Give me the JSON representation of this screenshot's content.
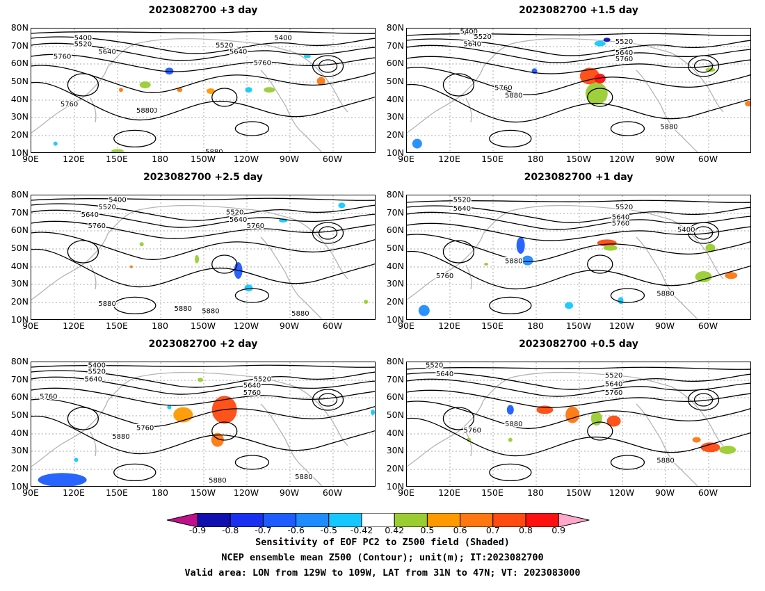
{
  "chart_data": [
    {
      "type": "heatmap",
      "title": "2023082700 +3 day",
      "x_ticks": [
        "90E",
        "120E",
        "150E",
        "180",
        "150W",
        "120W",
        "90W",
        "60W"
      ],
      "y_ticks": [
        "10N",
        "20N",
        "30N",
        "40N",
        "50N",
        "60N",
        "70N",
        "80N"
      ],
      "contour_labels": [
        "5400",
        "5520",
        "5640",
        "5760",
        "5880",
        "5400",
        "5520",
        "5640",
        "5760",
        "5760",
        "5880",
        "5880"
      ]
    },
    {
      "type": "heatmap",
      "title": "2023082700 +1.5 day",
      "x_ticks": [
        "90E",
        "120E",
        "150E",
        "180",
        "150W",
        "120W",
        "90W",
        "60W"
      ],
      "y_ticks": [
        "10N",
        "20N",
        "30N",
        "40N",
        "50N",
        "60N",
        "70N",
        "80N"
      ],
      "contour_labels": [
        "5400",
        "5520",
        "5640",
        "5760",
        "5880",
        "5520",
        "5640",
        "5760",
        "5880"
      ]
    },
    {
      "type": "heatmap",
      "title": "2023082700 +2.5 day",
      "x_ticks": [
        "90E",
        "120E",
        "150E",
        "180",
        "150W",
        "120W",
        "90W",
        "60W"
      ],
      "y_ticks": [
        "10N",
        "20N",
        "30N",
        "40N",
        "50N",
        "60N",
        "70N",
        "80N"
      ],
      "contour_labels": [
        "5400",
        "5520",
        "5640",
        "5760",
        "5520",
        "5640",
        "5760",
        "5880",
        "5880",
        "5880",
        "5880"
      ]
    },
    {
      "type": "heatmap",
      "title": "2023082700 +1 day",
      "x_ticks": [
        "90E",
        "120E",
        "150E",
        "180",
        "150W",
        "120W",
        "90W",
        "60W"
      ],
      "y_ticks": [
        "10N",
        "20N",
        "30N",
        "40N",
        "50N",
        "60N",
        "70N",
        "80N"
      ],
      "contour_labels": [
        "5520",
        "5640",
        "5520",
        "5640",
        "5760",
        "5400",
        "5880",
        "5760",
        "5880"
      ]
    },
    {
      "type": "heatmap",
      "title": "2023082700 +2 day",
      "x_ticks": [
        "90E",
        "120E",
        "150E",
        "180",
        "150W",
        "120W",
        "90W",
        "60W"
      ],
      "y_ticks": [
        "10N",
        "20N",
        "30N",
        "40N",
        "50N",
        "60N",
        "70N",
        "80N"
      ],
      "contour_labels": [
        "5400",
        "5520",
        "5640",
        "5760",
        "5520",
        "5640",
        "5760",
        "5760",
        "5880",
        "5880",
        "5880"
      ]
    },
    {
      "type": "heatmap",
      "title": "2023082700 +0.5 day",
      "x_ticks": [
        "90E",
        "120E",
        "150E",
        "180",
        "150W",
        "120W",
        "90W",
        "60W"
      ],
      "y_ticks": [
        "10N",
        "20N",
        "30N",
        "40N",
        "50N",
        "60N",
        "70N",
        "80N"
      ],
      "contour_labels": [
        "5520",
        "5640",
        "5520",
        "5640",
        "5760",
        "5760",
        "5880",
        "5880"
      ]
    }
  ],
  "colorbar": {
    "labels": [
      "-0.9",
      "-0.8",
      "-0.7",
      "-0.6",
      "-0.5",
      "-0.42",
      "0.42",
      "0.5",
      "0.6",
      "0.7",
      "0.8",
      "0.9"
    ],
    "colors": [
      "#1010b0",
      "#1a30f0",
      "#1e5cff",
      "#1e8cff",
      "#14c8ff",
      "#ffffff",
      "#9acd32",
      "#ff9900",
      "#ff7710",
      "#ff4a10",
      "#ff1010"
    ],
    "low_color": "#c0108c",
    "high_color": "#ffa8cc"
  },
  "captions": {
    "line1": "Sensitivity of EOF PC2 to Z500 field (Shaded)",
    "line2": "NCEP ensemble mean Z500 (Contour); unit(m); IT:2023082700",
    "line3": "Valid area: LON from 129W to 109W, LAT from 31N to 47N; VT: 2023083000"
  }
}
